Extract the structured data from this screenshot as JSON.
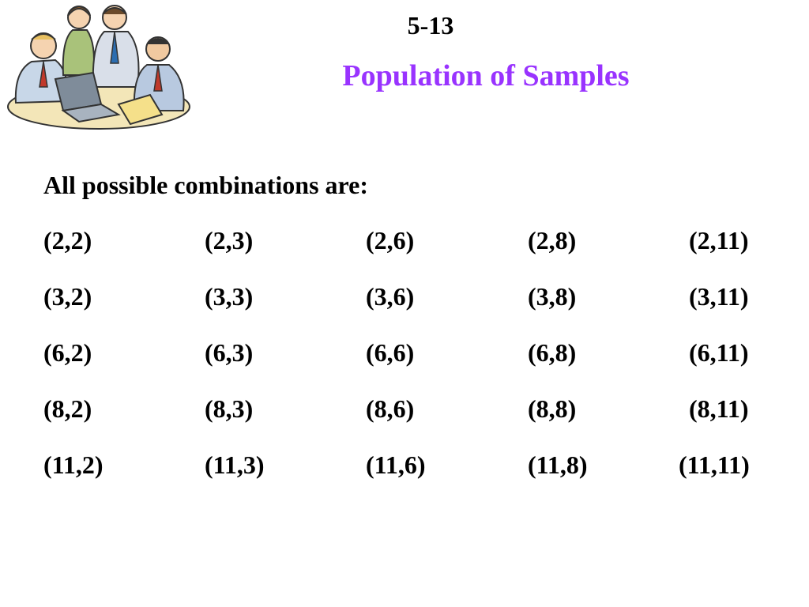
{
  "slide": {
    "number": "5-13",
    "title": "Population of Samples",
    "title_color": "#9933ff",
    "clipart_icon": "business-team-at-laptop-illustration"
  },
  "content": {
    "intro": "All possible combinations are:",
    "rows": [
      [
        "(2,2)",
        "(2,3)",
        "(2,6)",
        "(2,8)",
        "(2,11)"
      ],
      [
        "(3,2)",
        "(3,3)",
        "(3,6)",
        "(3,8)",
        "(3,11)"
      ],
      [
        "(6,2)",
        "(6,3)",
        "(6,6)",
        "(6,8)",
        "(6,11)"
      ],
      [
        "(8,2)",
        "(8,3)",
        "(8,6)",
        "(8,8)",
        "(8,11)"
      ],
      [
        "(11,2)",
        "(11,3)",
        "(11,6)",
        "(11,8)",
        "(11,11)"
      ]
    ]
  }
}
